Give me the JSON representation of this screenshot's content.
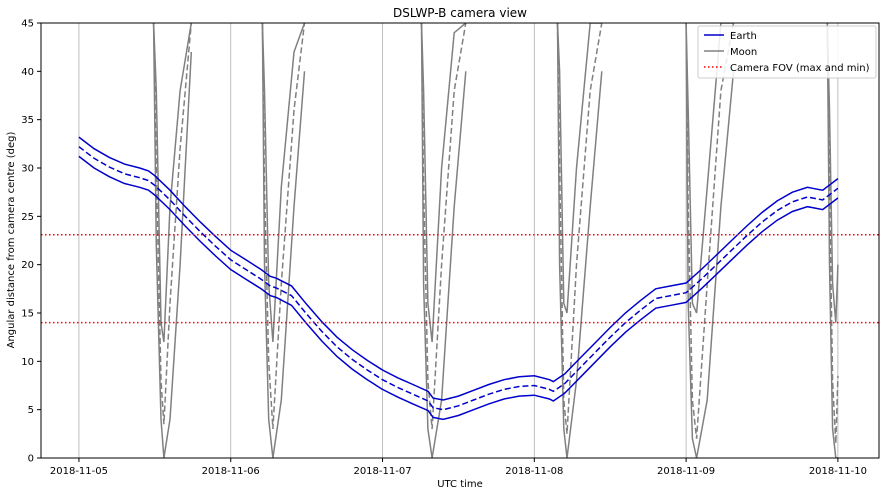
{
  "chart_data": {
    "type": "line",
    "title": "DSLWP-B camera view",
    "xlabel": "UTC time",
    "ylabel": "Angular distance from camera centre (deg)",
    "xlim": [
      "2018-11-04T18:00",
      "2018-11-10T06:30"
    ],
    "ylim": [
      0,
      45
    ],
    "x_ticks": [
      "2018-11-05",
      "2018-11-06",
      "2018-11-07",
      "2018-11-08",
      "2018-11-09",
      "2018-11-10"
    ],
    "y_ticks": [
      0,
      5,
      10,
      15,
      20,
      25,
      30,
      35,
      40,
      45
    ],
    "grid": "vertical lines at x ticks",
    "legend_position": "top-right",
    "legend": [
      "Earth",
      "Moon",
      "Camera FOV (max and min)"
    ],
    "colors": {
      "earth": "#0000cc",
      "moon": "#808080",
      "fov": "#ff0000"
    },
    "fov_lines": [
      23.1,
      14.0
    ],
    "series": [
      {
        "name": "Earth",
        "style": "solid + dashed centre",
        "x": [
          "2018-11-05T00:00",
          "2018-11-05T02:24",
          "2018-11-05T04:48",
          "2018-11-05T07:12",
          "2018-11-05T09:36",
          "2018-11-05T11:00",
          "2018-11-05T12:00",
          "2018-11-05T14:24",
          "2018-11-05T16:48",
          "2018-11-05T19:12",
          "2018-11-05T21:36",
          "2018-11-06T00:00",
          "2018-11-06T02:24",
          "2018-11-06T04:48",
          "2018-11-06T06:14",
          "2018-11-06T07:12",
          "2018-11-06T09:36",
          "2018-11-06T12:00",
          "2018-11-06T14:24",
          "2018-11-06T16:48",
          "2018-11-06T19:12",
          "2018-11-06T21:36",
          "2018-11-07T00:00",
          "2018-11-07T02:24",
          "2018-11-07T04:48",
          "2018-11-07T07:12",
          "2018-11-07T08:00",
          "2018-11-07T09:36",
          "2018-11-07T12:00",
          "2018-11-07T14:24",
          "2018-11-07T16:48",
          "2018-11-07T19:12",
          "2018-11-07T21:36",
          "2018-11-08T00:00",
          "2018-11-08T02:24",
          "2018-11-08T03:00",
          "2018-11-08T04:48",
          "2018-11-08T07:12",
          "2018-11-08T09:36",
          "2018-11-08T12:00",
          "2018-11-08T14:24",
          "2018-11-08T16:48",
          "2018-11-08T19:12",
          "2018-11-08T21:36",
          "2018-11-09T00:00",
          "2018-11-09T02:24",
          "2018-11-09T04:48",
          "2018-11-09T07:12",
          "2018-11-09T09:36",
          "2018-11-09T12:00",
          "2018-11-09T14:24",
          "2018-11-09T16:48",
          "2018-11-09T19:12",
          "2018-11-09T20:00",
          "2018-11-09T21:36",
          "2018-11-10T00:00"
        ],
        "center": [
          32.2,
          31.0,
          30.1,
          29.4,
          29.0,
          28.7,
          28.2,
          26.7,
          25.0,
          23.4,
          21.9,
          20.5,
          19.5,
          18.5,
          17.8,
          17.6,
          16.8,
          14.9,
          13.1,
          11.5,
          10.2,
          9.1,
          8.1,
          7.3,
          6.6,
          5.9,
          5.2,
          5.0,
          5.4,
          6.0,
          6.6,
          7.1,
          7.4,
          7.5,
          7.1,
          6.9,
          7.7,
          9.3,
          10.9,
          12.5,
          14.0,
          15.3,
          16.5,
          16.8,
          17.1,
          18.5,
          20.0,
          21.5,
          23.0,
          24.4,
          25.6,
          26.5,
          27.0,
          26.9,
          26.7,
          27.9
        ],
        "upper": [
          33.2,
          32.0,
          31.1,
          30.4,
          30.0,
          29.7,
          29.2,
          27.7,
          26.0,
          24.4,
          22.9,
          21.5,
          20.5,
          19.5,
          18.8,
          18.6,
          17.8,
          15.9,
          14.1,
          12.5,
          11.2,
          10.1,
          9.1,
          8.3,
          7.6,
          6.9,
          6.2,
          6.0,
          6.4,
          7.0,
          7.6,
          8.1,
          8.4,
          8.5,
          8.1,
          7.9,
          8.7,
          10.3,
          11.9,
          13.5,
          15.0,
          16.3,
          17.5,
          17.8,
          18.1,
          19.5,
          21.0,
          22.5,
          24.0,
          25.4,
          26.6,
          27.5,
          28.0,
          27.9,
          27.7,
          28.9
        ],
        "lower": [
          31.2,
          30.0,
          29.1,
          28.4,
          28.0,
          27.7,
          27.2,
          25.7,
          24.0,
          22.4,
          20.9,
          19.5,
          18.5,
          17.5,
          16.8,
          16.6,
          15.8,
          13.9,
          12.1,
          10.5,
          9.2,
          8.1,
          7.1,
          6.3,
          5.6,
          4.9,
          4.2,
          4.0,
          4.4,
          5.0,
          5.6,
          6.1,
          6.4,
          6.5,
          6.1,
          5.9,
          6.7,
          8.3,
          9.9,
          11.5,
          13.0,
          14.3,
          15.5,
          15.8,
          16.1,
          17.5,
          19.0,
          20.5,
          22.0,
          23.4,
          24.6,
          25.5,
          26.0,
          25.9,
          25.7,
          26.9
        ]
      },
      {
        "name": "Moon",
        "style": "solid + dashed centre",
        "passes": [
          {
            "x": [
              "2018-11-05T11:48",
              "2018-11-05T12:14",
              "2018-11-05T12:58",
              "2018-11-05T13:26",
              "2018-11-05T14:24",
              "2018-11-05T16:00",
              "2018-11-05T17:46"
            ],
            "center": [
              45,
              30,
              8,
              3.5,
              16,
              32,
              45
            ],
            "upper": [
              45,
              38,
              14,
              12,
              26,
              38,
              45
            ],
            "lower": [
              45,
              22,
              4,
              0,
              4,
              20,
              42
            ]
          },
          {
            "x": [
              "2018-11-06T05:00",
              "2018-11-06T05:20",
              "2018-11-06T06:00",
              "2018-11-06T06:40",
              "2018-11-06T08:00",
              "2018-11-06T10:00",
              "2018-11-06T11:40"
            ],
            "center": [
              45,
              28,
              10,
              3.0,
              18,
              36,
              45
            ],
            "upper": [
              45,
              38,
              18,
              12,
              28,
              42,
              45
            ],
            "lower": [
              45,
              20,
              4,
              0,
              6,
              26,
              40
            ]
          },
          {
            "x": [
              "2018-11-07T06:10",
              "2018-11-07T06:30",
              "2018-11-07T07:10",
              "2018-11-07T07:50",
              "2018-11-07T09:20",
              "2018-11-07T11:20",
              "2018-11-07T13:10"
            ],
            "center": [
              45,
              28,
              8,
              3.0,
              20,
              38,
              45
            ],
            "upper": [
              45,
              38,
              16,
              12,
              30,
              44,
              45
            ],
            "lower": [
              45,
              18,
              3,
              0,
              6,
              26,
              40
            ]
          },
          {
            "x": [
              "2018-11-08T03:40",
              "2018-11-08T04:00",
              "2018-11-08T04:40",
              "2018-11-08T05:10",
              "2018-11-08T06:40",
              "2018-11-08T08:50",
              "2018-11-08T10:40"
            ],
            "center": [
              45,
              30,
              6,
              2.5,
              20,
              38,
              45
            ],
            "upper": [
              45,
              40,
              16,
              15,
              30,
              45,
              45
            ],
            "lower": [
              45,
              20,
              3,
              0,
              8,
              26,
              40
            ]
          },
          {
            "x": [
              "2018-11-09T00:00",
              "2018-11-09T00:20",
              "2018-11-09T01:00",
              "2018-11-09T01:40",
              "2018-11-09T03:20",
              "2018-11-09T05:30",
              "2018-11-09T07:30"
            ],
            "center": [
              45,
              26,
              6,
              2.0,
              18,
              38,
              45
            ],
            "upper": [
              45,
              36,
              16,
              15,
              28,
              45,
              45
            ],
            "lower": [
              45,
              16,
              2,
              0,
              6,
              26,
              40
            ]
          },
          {
            "x": [
              "2018-11-09T22:20",
              "2018-11-09T22:40",
              "2018-11-09T23:10",
              "2018-11-09T23:40",
              "2018-11-10T00:00"
            ],
            "center": [
              45,
              28,
              8,
              1.5,
              8.5
            ],
            "upper": [
              45,
              36,
              18,
              14,
              20
            ],
            "lower": [
              45,
              20,
              3,
              0,
              0
            ]
          }
        ]
      },
      {
        "name": "Camera FOV (max and min)",
        "style": "dotted",
        "values": [
          23.1,
          14.0
        ]
      }
    ]
  }
}
